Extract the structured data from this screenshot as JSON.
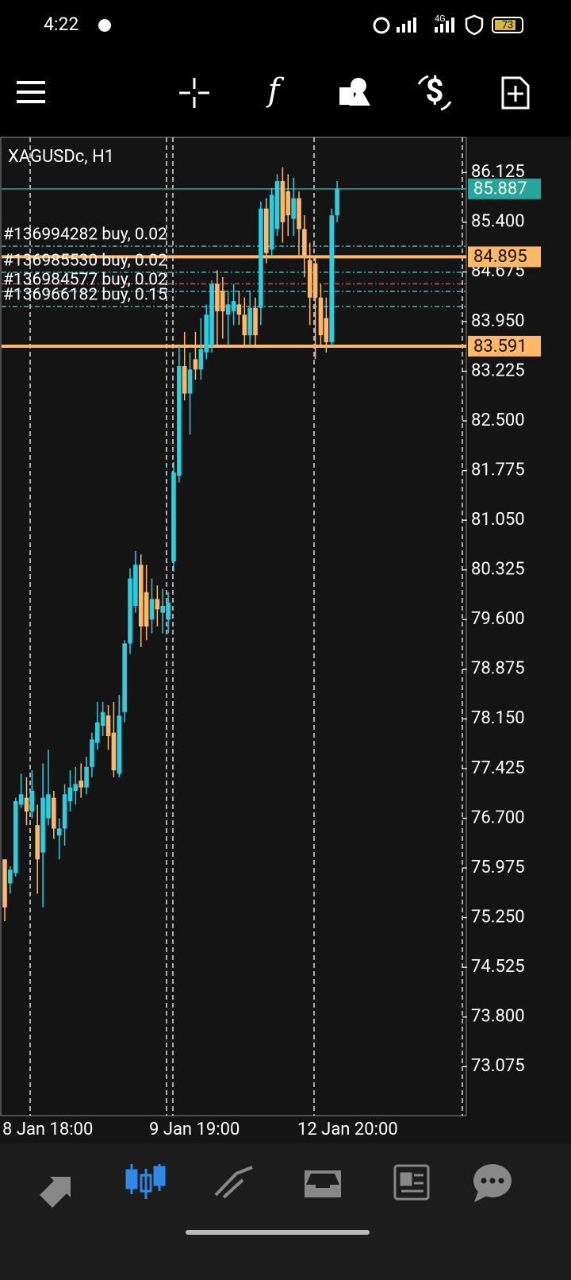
{
  "status_bar": {
    "time": "4:22",
    "network": "4G",
    "battery": "73"
  },
  "chart": {
    "type": "candlestick",
    "title": "XAGUSDc, H1",
    "ylim": [
      72.36,
      86.65
    ],
    "yticks": [
      86.125,
      {
        "value": 85.4,
        "label": "85.400"
      },
      84.675,
      {
        "value": 83.95,
        "label": "83.950"
      },
      83.225,
      {
        "value": 82.5,
        "label": "82.500"
      },
      81.775,
      {
        "value": 81.05,
        "label": "81.050"
      },
      80.325,
      {
        "value": 79.6,
        "label": "79.600"
      },
      78.875,
      {
        "value": 78.15,
        "label": "78.150"
      },
      77.425,
      {
        "value": 76.7,
        "label": "76.700"
      },
      75.975,
      {
        "value": 75.25,
        "label": "75.250"
      },
      74.525,
      {
        "value": 73.8,
        "label": "73.800"
      },
      73.075
    ],
    "x_labels": [
      "8 Jan 18:00",
      "9 Jan 19:00",
      "12 Jan 20:00"
    ],
    "colors": {
      "bull": "#29cfe0",
      "bear": "#ffb866",
      "last": "#26a69a",
      "level": "#ffb866",
      "order": "#3fb7b7",
      "stop": "#e0463a"
    },
    "price_lines": [
      {
        "value": 85.887,
        "kind": "last"
      },
      {
        "value": 84.895,
        "kind": "level"
      },
      {
        "value": 83.591,
        "kind": "level"
      }
    ],
    "orders": [
      {
        "label": "#136994282 buy, 0.02",
        "value": 85.05
      },
      {
        "label": "#136985530 buy, 0.02",
        "value": 84.67
      },
      {
        "label": "#136984577 buy, 0.02",
        "value": 84.39
      },
      {
        "label": "#136966182 buy, 0.15",
        "value": 84.17
      }
    ],
    "stop_level": 84.5,
    "candles": [
      {
        "open": 76.1,
        "high": 76.1,
        "low": 75.2,
        "close": 75.4
      },
      {
        "open": 75.75,
        "high": 76.0,
        "low": 75.6,
        "close": 75.95
      },
      {
        "open": 75.9,
        "high": 77.0,
        "low": 75.85,
        "close": 76.95
      },
      {
        "open": 76.9,
        "high": 77.35,
        "low": 76.85,
        "close": 77.05
      },
      {
        "open": 77.0,
        "high": 77.3,
        "low": 76.6,
        "close": 76.8
      },
      {
        "open": 76.8,
        "high": 77.4,
        "low": 76.7,
        "close": 77.1
      },
      {
        "open": 76.6,
        "high": 76.9,
        "low": 75.6,
        "close": 76.1
      },
      {
        "open": 76.2,
        "high": 77.5,
        "low": 75.4,
        "close": 77.0
      },
      {
        "open": 76.7,
        "high": 77.7,
        "low": 76.6,
        "close": 77.05
      },
      {
        "open": 77.0,
        "high": 77.1,
        "low": 76.4,
        "close": 76.55
      },
      {
        "open": 76.45,
        "high": 76.7,
        "low": 76.1,
        "close": 76.55
      },
      {
        "open": 76.55,
        "high": 77.2,
        "low": 76.3,
        "close": 77.05
      },
      {
        "open": 76.95,
        "high": 77.4,
        "low": 76.8,
        "close": 77.15
      },
      {
        "open": 77.1,
        "high": 77.45,
        "low": 76.9,
        "close": 77.2
      },
      {
        "open": 77.25,
        "high": 77.5,
        "low": 77.0,
        "close": 77.15
      },
      {
        "open": 77.15,
        "high": 77.6,
        "low": 77.05,
        "close": 77.45
      },
      {
        "open": 77.45,
        "high": 77.95,
        "low": 77.3,
        "close": 77.85
      },
      {
        "open": 77.8,
        "high": 78.4,
        "low": 77.7,
        "close": 78.1
      },
      {
        "open": 78.05,
        "high": 78.4,
        "low": 77.9,
        "close": 78.25
      },
      {
        "open": 78.2,
        "high": 78.35,
        "low": 77.7,
        "close": 77.9
      },
      {
        "open": 77.95,
        "high": 78.4,
        "low": 77.3,
        "close": 77.4
      },
      {
        "open": 77.35,
        "high": 78.5,
        "low": 77.3,
        "close": 78.2
      },
      {
        "open": 78.25,
        "high": 79.3,
        "low": 78.1,
        "close": 79.25
      },
      {
        "open": 79.25,
        "high": 80.35,
        "low": 79.1,
        "close": 80.2
      },
      {
        "open": 79.8,
        "high": 80.6,
        "low": 79.7,
        "close": 80.4
      },
      {
        "open": 80.4,
        "high": 80.55,
        "low": 79.2,
        "close": 79.5
      },
      {
        "open": 80.0,
        "high": 80.4,
        "low": 79.3,
        "close": 79.5
      },
      {
        "open": 79.6,
        "high": 80.2,
        "low": 79.4,
        "close": 79.9
      },
      {
        "open": 79.9,
        "high": 80.1,
        "low": 79.5,
        "close": 79.75
      },
      {
        "open": 79.7,
        "high": 80.05,
        "low": 79.4,
        "close": 79.8
      },
      {
        "open": 79.6,
        "high": 80.0,
        "low": 79.4,
        "close": 79.85
      },
      {
        "open": 80.45,
        "high": 81.9,
        "low": 80.3,
        "close": 81.75
      },
      {
        "open": 81.7,
        "high": 83.6,
        "low": 81.6,
        "close": 83.3
      },
      {
        "open": 83.3,
        "high": 83.8,
        "low": 82.8,
        "close": 82.9
      },
      {
        "open": 82.9,
        "high": 83.5,
        "low": 82.3,
        "close": 83.25
      },
      {
        "open": 83.4,
        "high": 83.8,
        "low": 83.1,
        "close": 83.25
      },
      {
        "open": 83.25,
        "high": 84.0,
        "low": 83.1,
        "close": 83.55
      },
      {
        "open": 83.5,
        "high": 84.2,
        "low": 83.4,
        "close": 84.05
      },
      {
        "open": 83.6,
        "high": 84.55,
        "low": 83.5,
        "close": 84.5
      },
      {
        "open": 84.5,
        "high": 84.7,
        "low": 83.6,
        "close": 84.1
      },
      {
        "open": 84.4,
        "high": 84.6,
        "low": 83.7,
        "close": 84.1
      },
      {
        "open": 84.05,
        "high": 84.4,
        "low": 83.6,
        "close": 84.2
      },
      {
        "open": 84.1,
        "high": 84.5,
        "low": 83.9,
        "close": 84.25
      },
      {
        "open": 84.2,
        "high": 84.4,
        "low": 83.9,
        "close": 84.05
      },
      {
        "open": 84.05,
        "high": 84.3,
        "low": 83.6,
        "close": 83.75
      },
      {
        "open": 83.75,
        "high": 84.4,
        "low": 83.6,
        "close": 84.15
      },
      {
        "open": 84.15,
        "high": 84.3,
        "low": 83.6,
        "close": 83.75
      },
      {
        "open": 84.15,
        "high": 85.7,
        "low": 83.9,
        "close": 85.6
      },
      {
        "open": 85.6,
        "high": 85.75,
        "low": 84.8,
        "close": 84.95
      },
      {
        "open": 85.0,
        "high": 85.9,
        "low": 84.9,
        "close": 85.8
      },
      {
        "open": 85.3,
        "high": 86.1,
        "low": 85.2,
        "close": 86.0
      },
      {
        "open": 86.0,
        "high": 86.2,
        "low": 85.1,
        "close": 85.4
      },
      {
        "open": 85.85,
        "high": 86.1,
        "low": 85.2,
        "close": 85.5
      },
      {
        "open": 85.45,
        "high": 86.05,
        "low": 85.2,
        "close": 85.75
      },
      {
        "open": 85.75,
        "high": 85.85,
        "low": 84.9,
        "close": 85.3
      },
      {
        "open": 85.3,
        "high": 85.5,
        "low": 84.6,
        "close": 84.9
      },
      {
        "open": 84.85,
        "high": 85.1,
        "low": 83.9,
        "close": 84.3
      },
      {
        "open": 84.8,
        "high": 84.9,
        "low": 83.4,
        "close": 84.3
      },
      {
        "open": 84.3,
        "high": 84.5,
        "low": 83.6,
        "close": 83.75
      },
      {
        "open": 84.0,
        "high": 84.3,
        "low": 83.5,
        "close": 83.65
      },
      {
        "open": 83.65,
        "high": 85.6,
        "low": 83.6,
        "close": 85.5
      },
      {
        "open": 85.5,
        "high": 86.0,
        "low": 85.4,
        "close": 85.887
      }
    ]
  }
}
